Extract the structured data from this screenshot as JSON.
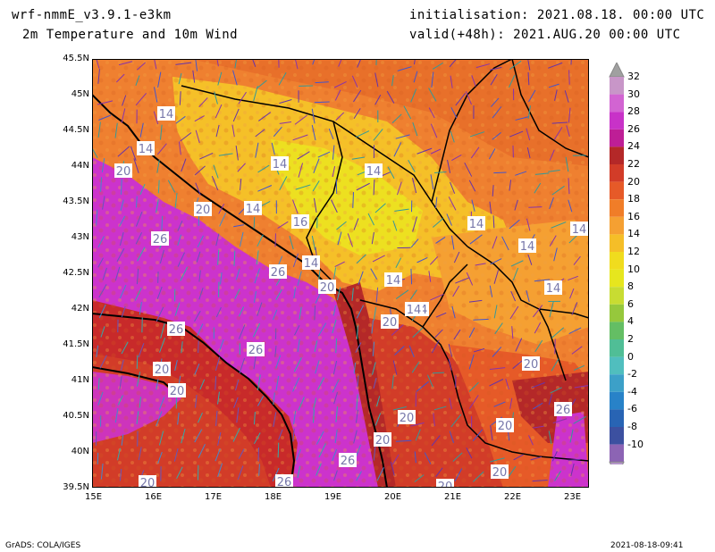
{
  "header": {
    "model": "wrf-nmmE_v3.9.1-e3km",
    "field": "2m Temperature and 10m Wind",
    "init": "initialisation: 2021.08.18. 00:00 UTC",
    "valid": "valid(+48h): 2021.AUG.20 00:00 UTC"
  },
  "axes": {
    "lat_ticks": [
      "45.5N",
      "45N",
      "44.5N",
      "44N",
      "43.5N",
      "43N",
      "42.5N",
      "42N",
      "41.5N",
      "41N",
      "40.5N",
      "40N",
      "39.5N"
    ],
    "lon_ticks": [
      "15E",
      "16E",
      "17E",
      "18E",
      "19E",
      "20E",
      "21E",
      "22E",
      "23E"
    ]
  },
  "colorbar": {
    "labels": [
      "32",
      "30",
      "28",
      "26",
      "24",
      "22",
      "20",
      "18",
      "16",
      "14",
      "12",
      "10",
      "8",
      "6",
      "4",
      "2",
      "0",
      "-2",
      "-4",
      "-6",
      "-8",
      "-10"
    ],
    "colors": [
      "#c896c8",
      "#d264d2",
      "#c832c8",
      "#be1e96",
      "#b42828",
      "#d23c28",
      "#e65a28",
      "#f07d28",
      "#f5a032",
      "#f5be28",
      "#f0dc1e",
      "#e6e61e",
      "#c8dc32",
      "#96c83c",
      "#64be64",
      "#50be96",
      "#50bebe",
      "#3ca0c8",
      "#2882c8",
      "#2864b4",
      "#3c50a0",
      "#8c64b4"
    ],
    "arrow_top": "#a0a0a0",
    "arrow_bottom": "#b496c8"
  },
  "map_labels": [
    {
      "text": "14"
    },
    {
      "text": "14"
    },
    {
      "text": "20"
    },
    {
      "text": "14"
    },
    {
      "text": "14"
    },
    {
      "text": "20"
    },
    {
      "text": "14"
    },
    {
      "text": "16"
    },
    {
      "text": "26"
    },
    {
      "text": "14"
    },
    {
      "text": "14"
    },
    {
      "text": "14"
    },
    {
      "text": "14"
    },
    {
      "text": "26"
    },
    {
      "text": "20"
    },
    {
      "text": "14"
    },
    {
      "text": "14"
    },
    {
      "text": "14"
    },
    {
      "text": "26"
    },
    {
      "text": "20"
    },
    {
      "text": "14"
    },
    {
      "text": "26"
    },
    {
      "text": "20"
    },
    {
      "text": "20"
    },
    {
      "text": "20"
    },
    {
      "text": "20"
    },
    {
      "text": "20"
    },
    {
      "text": "20"
    },
    {
      "text": "26"
    },
    {
      "text": "26"
    },
    {
      "text": "20"
    },
    {
      "text": "20"
    },
    {
      "text": "20"
    },
    {
      "text": "26"
    }
  ],
  "footer": {
    "left": "GrADS: COLA/IGES",
    "right": "2021-08-18-09:41"
  }
}
